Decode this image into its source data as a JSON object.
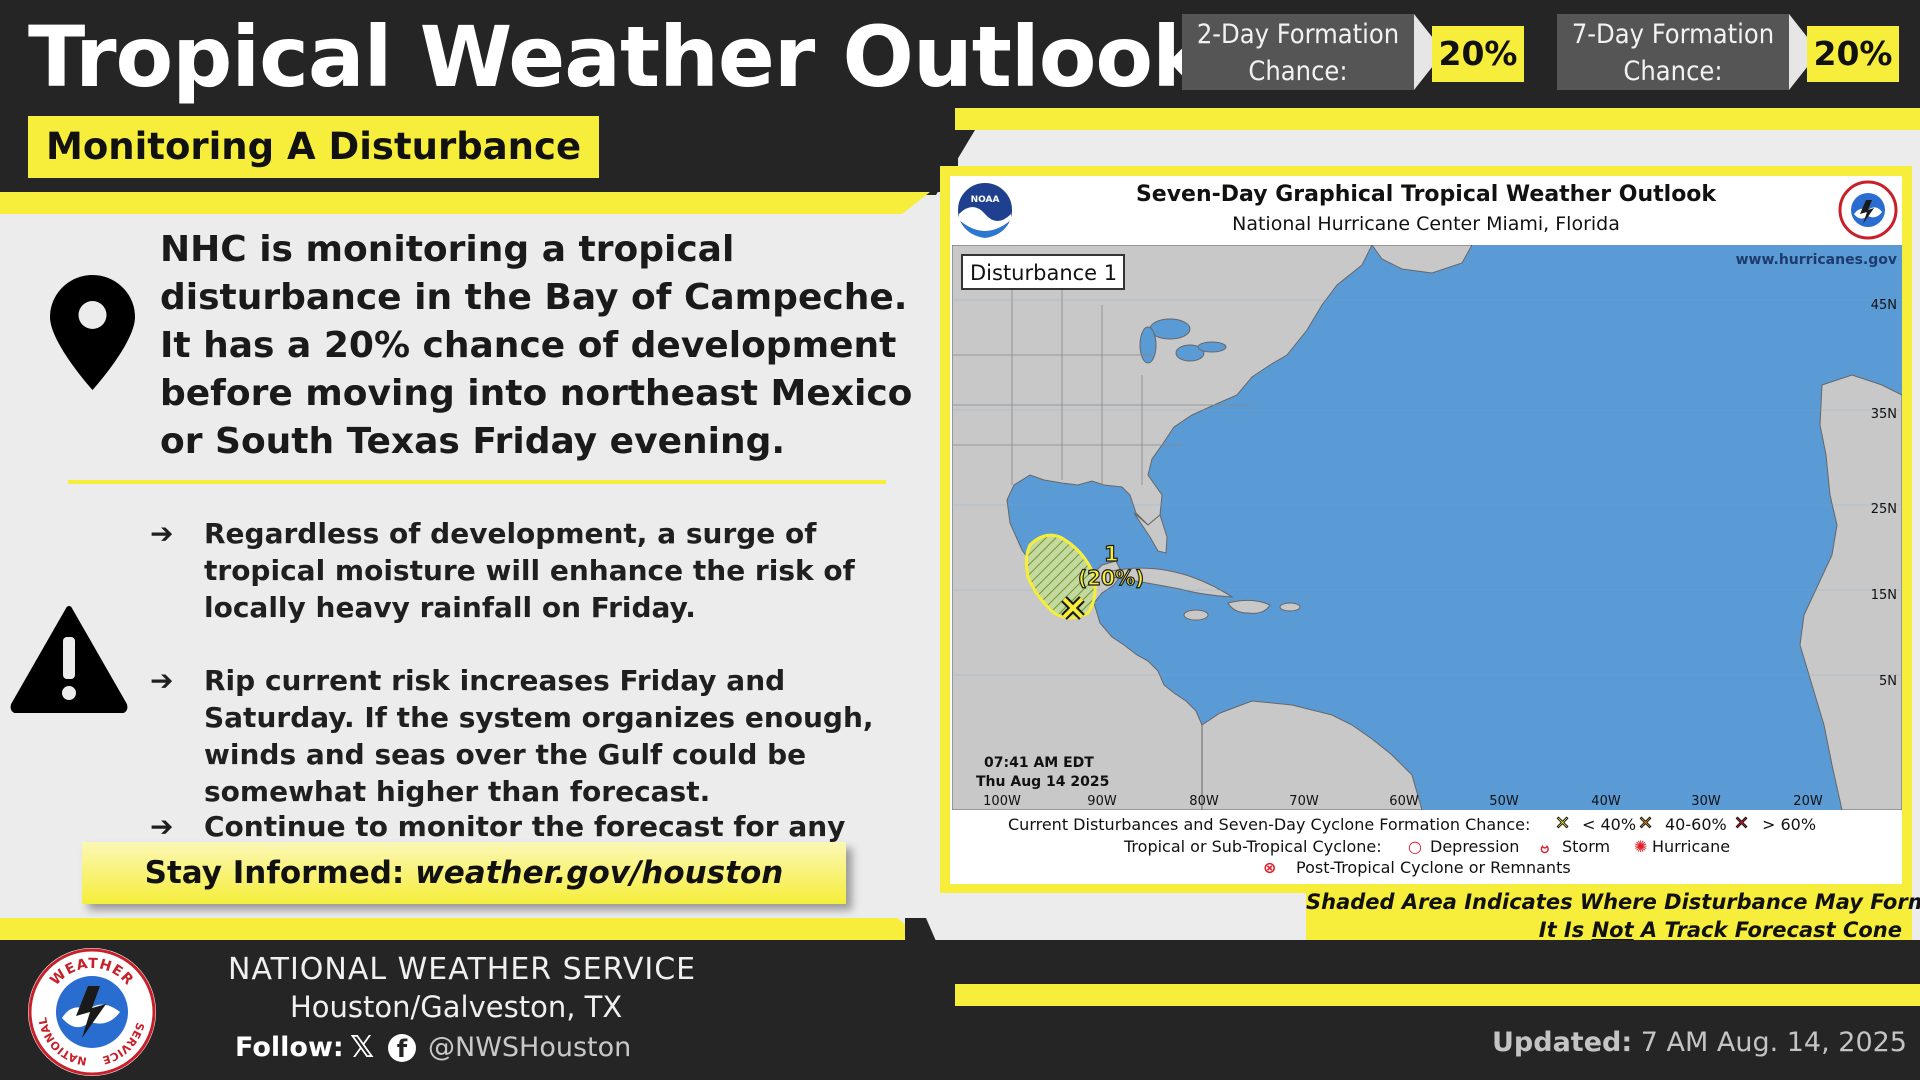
{
  "header": {
    "title": "Tropical Weather Outlook",
    "subtitle": "Monitoring A Disturbance",
    "two_day": {
      "label_line1": "2-Day Formation",
      "label_line2": "Chance:",
      "value": "20%"
    },
    "seven_day": {
      "label_line1": "7-Day Formation",
      "label_line2": "Chance:",
      "value": "20%"
    }
  },
  "main": {
    "lead": "NHC is monitoring a tropical disturbance in the Bay of Campeche. It has a 20% chance of development before moving into northeast Mexico or South Texas Friday evening.",
    "bullets": [
      "Regardless of development, a surge of tropical moisture will enhance the risk of locally heavy rainfall on Friday.",
      "Rip current risk increases Friday and Saturday. If the system organizes enough, winds and seas over the Gulf could be somewhat higher than forecast.",
      "Continue to monitor the forecast for any changes."
    ],
    "arrow_glyph": "➔",
    "stay_label": "Stay Informed:",
    "stay_link": "weather.gov/houston"
  },
  "map": {
    "title": "Seven-Day Graphical Tropical Weather Outlook",
    "subtitle": "National Hurricane Center  Miami, Florida",
    "disturbance_label": "Disturbance 1",
    "website": "www.hurricanes.gov",
    "disturbance_number": "1",
    "disturbance_chance": "(20%)",
    "timestamp_line1": "07:41 AM EDT",
    "timestamp_line2": "Thu Aug 14 2025",
    "lat_labels": [
      "45N",
      "35N",
      "25N",
      "15N",
      "5N"
    ],
    "lon_labels": [
      "100W",
      "90W",
      "80W",
      "70W",
      "60W",
      "50W",
      "40W",
      "30W",
      "20W"
    ],
    "legend": {
      "line1_label": "Current Disturbances and Seven-Day Cyclone Formation Chance:",
      "low": "< 40%",
      "mid": "40-60%",
      "high": "> 60%",
      "line2_label": "Tropical or Sub-Tropical Cyclone:",
      "depression": "Depression",
      "storm": "Storm",
      "hurricane": "Hurricane",
      "post_tropical": "Post-Tropical Cyclone or Remnants"
    },
    "colors": {
      "ocean": "#5b9bd5",
      "land": "#c8c8c8",
      "low": "#f6ee3a",
      "mid": "#f39a1e",
      "high": "#e0202a"
    },
    "note_line1": "Shaded Area Indicates Where Disturbance May Form",
    "note_line2_pre": "It Is ",
    "note_line2_under": "Not",
    "note_line2_post": " A Track Forecast Cone"
  },
  "footer": {
    "org": "NATIONAL WEATHER SERVICE",
    "office": "Houston/Galveston, TX",
    "follow_label": "Follow:",
    "x_icon": "x-icon",
    "fb_icon": "facebook-icon",
    "handle": "@NWSHouston",
    "updated_label": "Updated:",
    "updated_value": "7 AM Aug. 14, 2025"
  },
  "logo_text": {
    "nws_ring_top": "WEATHER",
    "nws_ring_left": "NATIONAL",
    "nws_ring_right": "SERVICE",
    "noaa": "NOAA"
  }
}
